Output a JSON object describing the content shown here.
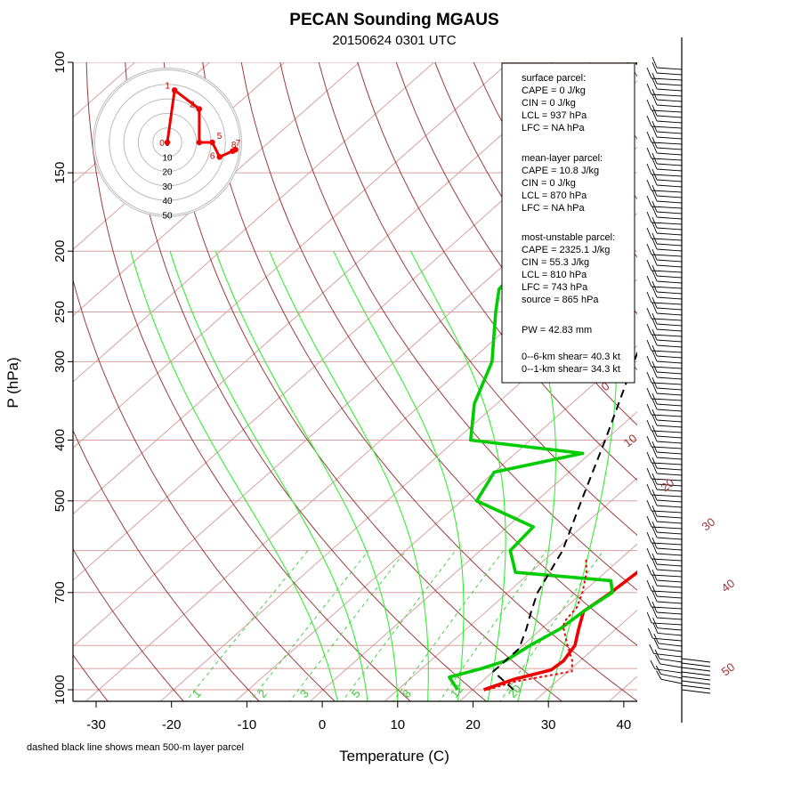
{
  "chart_data": {
    "type": "line",
    "title": "PECAN Sounding MGAUS",
    "subtitle": "20150624 0301 UTC",
    "xlabel": "Temperature (C)",
    "ylabel": "P (hPa)",
    "x_ticks": [
      -30,
      -20,
      -10,
      0,
      10,
      20,
      30,
      40
    ],
    "x_ticks_labels": [
      "-30",
      "-20",
      "-10",
      "0",
      "10",
      "20",
      "30",
      "40"
    ],
    "y_ticks": [
      100,
      150,
      200,
      250,
      300,
      400,
      500,
      700,
      1000
    ],
    "y_ticks_labels": [
      "100",
      "150",
      "200",
      "250",
      "300",
      "400",
      "500",
      "700",
      "1000"
    ],
    "xlim": [
      -33,
      49
    ],
    "ylim": [
      1050,
      100
    ],
    "yscale": "log",
    "skew": "skew-T",
    "footnote": "dashed black line shows mean 500-m layer parcel",
    "isotherm_pressures": [
      100,
      150,
      200,
      250,
      300,
      400,
      500,
      600,
      700,
      850,
      925,
      1000
    ],
    "dry_adiabat_labels": [
      "0",
      "10",
      "20",
      "30",
      "40",
      "50"
    ],
    "mixing_ratio_labels": [
      "1",
      "2",
      "3",
      "5",
      "8",
      "12",
      "20"
    ],
    "series": [
      {
        "name": "temperature",
        "color": "#ee0000",
        "points": [
          [
            21.5,
            1000
          ],
          [
            24,
            962
          ],
          [
            27.5,
            930
          ],
          [
            27.8,
            900
          ],
          [
            27,
            850
          ],
          [
            25,
            800
          ],
          [
            23,
            750
          ],
          [
            23.8,
            700
          ],
          [
            24.3,
            650
          ],
          [
            23.5,
            600
          ],
          [
            18,
            550
          ],
          [
            14,
            500
          ],
          [
            13.8,
            450
          ],
          [
            10,
            400
          ],
          [
            5,
            350
          ],
          [
            0.5,
            300
          ],
          [
            -3,
            250
          ],
          [
            -7,
            200
          ],
          [
            -11,
            165
          ],
          [
            -10,
            150
          ],
          [
            -7,
            120
          ],
          [
            -3,
            110
          ],
          [
            1,
            100
          ]
        ]
      },
      {
        "name": "dewpoint",
        "color": "#00cc00",
        "points": [
          [
            18,
            1000
          ],
          [
            15,
            955
          ],
          [
            18,
            925
          ],
          [
            20,
            900
          ],
          [
            21,
            850
          ],
          [
            22.5,
            800
          ],
          [
            23,
            750
          ],
          [
            24,
            700
          ],
          [
            22,
            670
          ],
          [
            8,
            650
          ],
          [
            4,
            600
          ],
          [
            3.5,
            550
          ],
          [
            -8,
            500
          ],
          [
            -10,
            450
          ],
          [
            -1,
            420
          ],
          [
            -18,
            400
          ],
          [
            -23,
            350
          ],
          [
            -27,
            300
          ],
          [
            -34,
            250
          ],
          [
            -37,
            230
          ],
          [
            -38,
            200
          ],
          [
            -41,
            180
          ],
          [
            -46,
            150
          ],
          [
            -53,
            130
          ],
          [
            -52,
            120
          ],
          [
            -54,
            100
          ]
        ]
      },
      {
        "name": "surface parcel",
        "color": "#ee0000",
        "dash": "dashed",
        "points": [
          [
            22,
            1000
          ],
          [
            24.5,
            970
          ],
          [
            30.5,
            935
          ],
          [
            29,
            900
          ],
          [
            26,
            850
          ],
          [
            23,
            800
          ],
          [
            22,
            780
          ],
          [
            21.5,
            740
          ],
          [
            20,
            700
          ],
          [
            17.5,
            650
          ],
          [
            15.5,
            620
          ]
        ]
      },
      {
        "name": "mean 500-m layer parcel",
        "color": "#000000",
        "dash": "dashed",
        "points": [
          [
            25.5,
            1000
          ],
          [
            20,
            935
          ],
          [
            20,
            860
          ],
          [
            18,
            800
          ],
          [
            16,
            750
          ],
          [
            14,
            700
          ],
          [
            11,
            600
          ],
          [
            6,
            500
          ],
          [
            0,
            400
          ],
          [
            -8,
            300
          ],
          [
            -13,
            250
          ],
          [
            -20,
            200
          ],
          [
            -32,
            150
          ],
          [
            -42,
            120
          ],
          [
            -53,
            100
          ]
        ]
      }
    ],
    "hodograph": {
      "ring_labels": [
        "0",
        "10",
        "20",
        "30",
        "40",
        "50"
      ],
      "point_labels": [
        "0",
        "1",
        "2",
        "5",
        "6",
        "7",
        "8"
      ],
      "points": [
        [
          0,
          0
        ],
        [
          5,
          36
        ],
        [
          22,
          23
        ],
        [
          22,
          0
        ],
        [
          31,
          0
        ],
        [
          36,
          -10
        ],
        [
          45,
          -6
        ],
        [
          47,
          -5
        ]
      ]
    },
    "wind_barbs": {
      "description": "Wind barb profile along right edge"
    }
  },
  "panel": {
    "surface_header": "surface parcel:",
    "surface_cape": "CAPE = 0 J/kg",
    "surface_cin": "CIN = 0 J/kg",
    "surface_lcl": "LCL = 937 hPa",
    "surface_lfc": "LFC = NA hPa",
    "ml_header": "mean-layer parcel:",
    "ml_cape": "CAPE = 10.8 J/kg",
    "ml_cin": "CIN = 0 J/kg",
    "ml_lcl": "LCL = 870 hPa",
    "ml_lfc": "LFC = NA hPa",
    "mu_header": "most-unstable parcel:",
    "mu_cape": "CAPE = 2325.1 J/kg",
    "mu_cin": "CIN = 55.3 J/kg",
    "mu_lcl": "LCL = 810 hPa",
    "mu_lfc": "LFC = 743 hPa",
    "mu_source": "source = 865 hPa",
    "pw": "PW =  42.83 mm",
    "shear6": "0--6-km shear= 40.3 kt",
    "shear1": "0--1-km shear= 34.3 kt"
  },
  "colors": {
    "isotherm": "#d8a0a0",
    "dry_adiabat": "#8b1a1a",
    "moist_adiabat": "#33ee33",
    "mixing_ratio": "#33cc33",
    "temperature": "#ee0000",
    "dewpoint": "#00cc00"
  }
}
